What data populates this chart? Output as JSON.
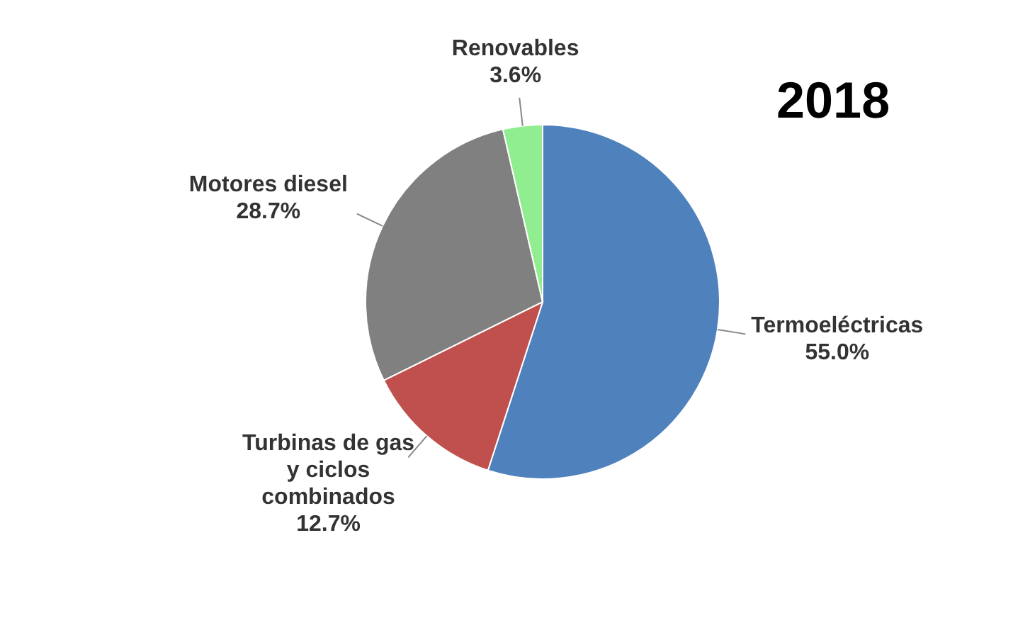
{
  "chart_data": {
    "type": "pie",
    "title": "2018",
    "categories": [
      "Termoeléctricas",
      "Turbinas de gas y ciclos combinados",
      "Motores diesel",
      "Renovables"
    ],
    "values": [
      55.0,
      12.7,
      28.7,
      3.6
    ],
    "value_labels": [
      "55.0%",
      "12.7%",
      "28.7%",
      "3.6%"
    ],
    "colors": [
      "#4f81bd",
      "#c0504d",
      "#808080",
      "#90ee90"
    ],
    "legend": false
  }
}
